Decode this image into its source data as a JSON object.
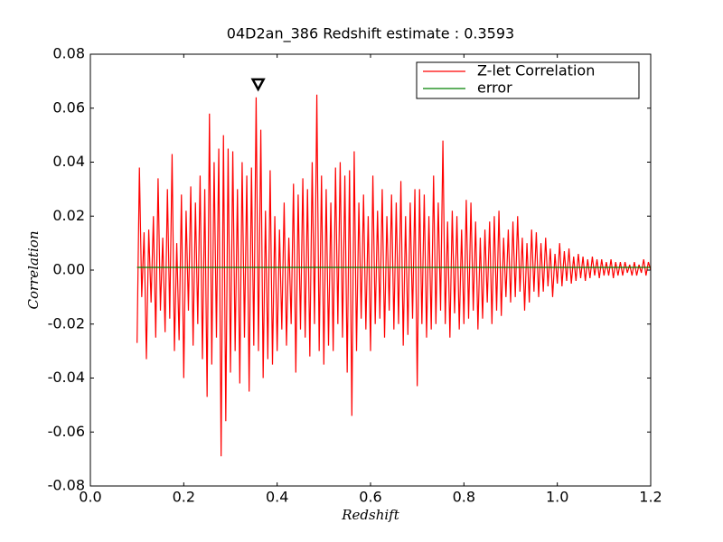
{
  "chart_data": {
    "type": "line",
    "title": "04D2an_386 Redshift estimate : 0.3593",
    "xlabel": "Redshift",
    "ylabel": "Correlation",
    "xlim": [
      0,
      1.2
    ],
    "ylim": [
      -0.08,
      0.08
    ],
    "xticks": [
      {
        "value": 0,
        "label": "0.0"
      },
      0.2,
      0.4,
      0.6,
      0.8,
      {
        "value": 1,
        "label": "1.0"
      },
      1.2
    ],
    "yticks": [
      -0.08,
      -0.06,
      -0.04,
      -0.02,
      {
        "value": 0,
        "label": "0.00"
      },
      0.02,
      0.04,
      0.06,
      0.08
    ],
    "grid": false,
    "legend": "upper right",
    "marker": {
      "x": 0.3593,
      "y": 0.069
    },
    "series": [
      {
        "name": "Z-let Correlation",
        "color": "#ff0000",
        "x": [
          0.1,
          0.105,
          0.11,
          0.115,
          0.12,
          0.125,
          0.13,
          0.135,
          0.14,
          0.145,
          0.15,
          0.155,
          0.16,
          0.165,
          0.17,
          0.175,
          0.18,
          0.185,
          0.19,
          0.195,
          0.2,
          0.205,
          0.21,
          0.215,
          0.22,
          0.225,
          0.23,
          0.235,
          0.24,
          0.245,
          0.25,
          0.255,
          0.26,
          0.265,
          0.27,
          0.275,
          0.28,
          0.285,
          0.29,
          0.295,
          0.3,
          0.305,
          0.31,
          0.315,
          0.32,
          0.325,
          0.33,
          0.335,
          0.34,
          0.345,
          0.35,
          0.355,
          0.36,
          0.365,
          0.37,
          0.375,
          0.38,
          0.385,
          0.39,
          0.395,
          0.4,
          0.405,
          0.41,
          0.415,
          0.42,
          0.425,
          0.43,
          0.435,
          0.44,
          0.445,
          0.45,
          0.455,
          0.46,
          0.465,
          0.47,
          0.475,
          0.48,
          0.485,
          0.49,
          0.495,
          0.5,
          0.505,
          0.51,
          0.515,
          0.52,
          0.525,
          0.53,
          0.535,
          0.54,
          0.545,
          0.55,
          0.555,
          0.56,
          0.565,
          0.57,
          0.575,
          0.58,
          0.585,
          0.59,
          0.595,
          0.6,
          0.605,
          0.61,
          0.615,
          0.62,
          0.625,
          0.63,
          0.635,
          0.64,
          0.645,
          0.65,
          0.655,
          0.66,
          0.665,
          0.67,
          0.675,
          0.68,
          0.685,
          0.69,
          0.695,
          0.7,
          0.705,
          0.71,
          0.715,
          0.72,
          0.725,
          0.73,
          0.735,
          0.74,
          0.745,
          0.75,
          0.755,
          0.76,
          0.765,
          0.77,
          0.775,
          0.78,
          0.785,
          0.79,
          0.795,
          0.8,
          0.805,
          0.81,
          0.815,
          0.82,
          0.825,
          0.83,
          0.835,
          0.84,
          0.845,
          0.85,
          0.855,
          0.86,
          0.865,
          0.87,
          0.875,
          0.88,
          0.885,
          0.89,
          0.895,
          0.9,
          0.905,
          0.91,
          0.915,
          0.92,
          0.925,
          0.93,
          0.935,
          0.94,
          0.945,
          0.95,
          0.955,
          0.96,
          0.965,
          0.97,
          0.975,
          0.98,
          0.985,
          0.99,
          0.995,
          1.0,
          1.005,
          1.01,
          1.015,
          1.02,
          1.025,
          1.03,
          1.035,
          1.04,
          1.045,
          1.05,
          1.055,
          1.06,
          1.065,
          1.07,
          1.075,
          1.08,
          1.085,
          1.09,
          1.095,
          1.1,
          1.105,
          1.11,
          1.115,
          1.12,
          1.125,
          1.13,
          1.135,
          1.14,
          1.145,
          1.15,
          1.155,
          1.16,
          1.165,
          1.17,
          1.175,
          1.18,
          1.185,
          1.19,
          1.195,
          1.2
        ],
        "values": [
          -0.027,
          0.038,
          -0.01,
          0.014,
          -0.033,
          0.015,
          -0.012,
          0.02,
          -0.025,
          0.034,
          -0.015,
          0.012,
          -0.023,
          0.03,
          -0.018,
          0.043,
          -0.03,
          0.01,
          -0.026,
          0.028,
          -0.04,
          0.022,
          -0.015,
          0.031,
          -0.028,
          0.025,
          -0.02,
          0.035,
          -0.033,
          0.03,
          -0.047,
          0.058,
          -0.035,
          0.04,
          -0.025,
          0.045,
          -0.069,
          0.05,
          -0.056,
          0.045,
          -0.038,
          0.044,
          -0.03,
          0.03,
          -0.042,
          0.04,
          -0.025,
          0.035,
          -0.045,
          0.038,
          -0.028,
          0.064,
          -0.03,
          0.052,
          -0.04,
          0.022,
          -0.033,
          0.037,
          -0.035,
          0.02,
          -0.03,
          0.015,
          -0.022,
          0.025,
          -0.028,
          0.012,
          -0.02,
          0.032,
          -0.038,
          0.028,
          -0.022,
          0.034,
          -0.025,
          0.03,
          -0.032,
          0.04,
          -0.02,
          0.065,
          -0.03,
          0.035,
          -0.035,
          0.03,
          -0.028,
          0.025,
          -0.03,
          0.038,
          -0.02,
          0.04,
          -0.025,
          0.035,
          -0.038,
          0.037,
          -0.054,
          0.044,
          -0.03,
          0.025,
          -0.018,
          0.028,
          -0.022,
          0.02,
          -0.03,
          0.035,
          -0.02,
          0.022,
          -0.018,
          0.03,
          -0.025,
          0.02,
          -0.015,
          0.028,
          -0.022,
          0.025,
          -0.02,
          0.033,
          -0.028,
          0.02,
          -0.024,
          0.025,
          -0.018,
          0.03,
          -0.043,
          0.03,
          -0.02,
          0.028,
          -0.025,
          0.02,
          -0.022,
          0.035,
          -0.02,
          0.025,
          -0.015,
          0.048,
          -0.02,
          0.018,
          -0.025,
          0.022,
          -0.016,
          0.02,
          -0.022,
          0.015,
          -0.02,
          0.026,
          -0.018,
          0.025,
          -0.015,
          0.018,
          -0.022,
          0.012,
          -0.018,
          0.015,
          -0.012,
          0.018,
          -0.02,
          0.02,
          -0.015,
          0.022,
          -0.017,
          0.012,
          -0.01,
          0.015,
          -0.012,
          0.018,
          -0.01,
          0.02,
          -0.008,
          0.012,
          -0.015,
          0.01,
          -0.012,
          0.015,
          -0.008,
          0.014,
          -0.01,
          0.01,
          -0.008,
          0.012,
          -0.006,
          0.008,
          -0.01,
          0.006,
          -0.005,
          0.01,
          -0.006,
          0.007,
          -0.004,
          0.008,
          -0.005,
          0.005,
          -0.004,
          0.006,
          -0.003,
          0.005,
          -0.004,
          0.004,
          -0.003,
          0.005,
          -0.002,
          0.004,
          -0.003,
          0.004,
          -0.002,
          0.003,
          -0.002,
          0.004,
          -0.003,
          0.003,
          -0.002,
          0.003,
          -0.002,
          0.003,
          -0.001,
          0.002,
          -0.002,
          0.003,
          -0.002,
          0.002,
          -0.001,
          0.004,
          -0.002,
          0.003,
          0.0
        ]
      },
      {
        "name": "error",
        "color": "#008000",
        "x": [
          0.1,
          1.2
        ],
        "values": [
          0.001,
          0.001
        ]
      }
    ]
  }
}
